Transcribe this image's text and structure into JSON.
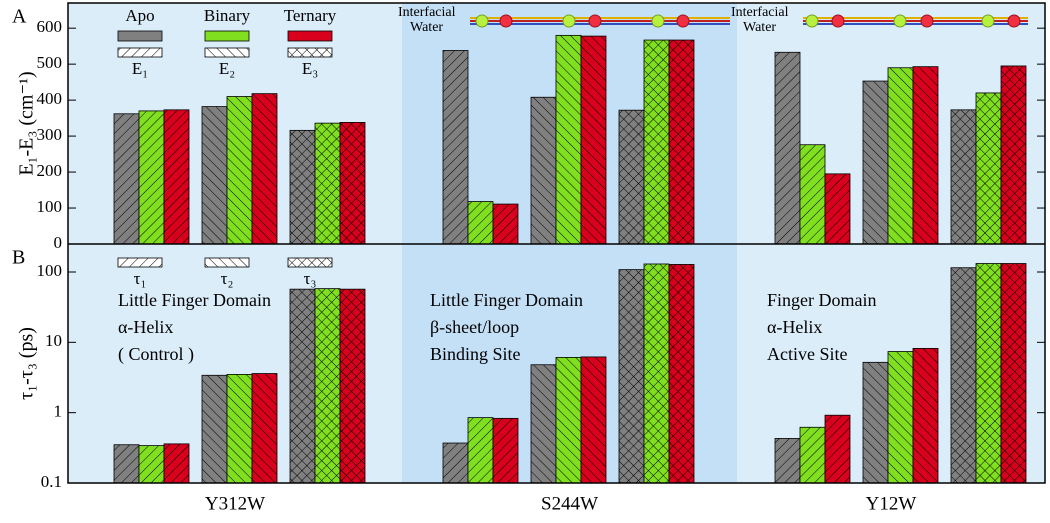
{
  "chart_data": [
    {
      "type": "bar",
      "label": "A",
      "ylabel": "E₁-E₃ (cm⁻¹)",
      "ylim": [
        0,
        670
      ],
      "yticks": [
        0,
        100,
        200,
        300,
        400,
        500,
        600
      ],
      "hatch_labels": [
        "E₁",
        "E₂",
        "E₃"
      ],
      "annotations": [
        [
          "Interfacial",
          "Water"
        ],
        [
          "Interfacial",
          "Water"
        ]
      ],
      "series": [
        {
          "name": "Apo",
          "color": "#808080",
          "values": [
            [
              362,
              382,
              316
            ],
            [
              538,
              408,
              372
            ],
            [
              533,
              453,
              373
            ]
          ]
        },
        {
          "name": "Binary",
          "color": "#80e020",
          "values": [
            [
              370,
              410,
              336
            ],
            [
              118,
              580,
              567
            ],
            [
              276,
              490,
              420
            ]
          ]
        },
        {
          "name": "Ternary",
          "color": "#d8001c",
          "values": [
            [
              373,
              418,
              338
            ],
            [
              111,
              578,
              567
            ],
            [
              195,
              493,
              495
            ]
          ]
        }
      ]
    },
    {
      "type": "bar",
      "label": "B",
      "ylabel": "τ₁-τ₃ (ps)",
      "log_scale": true,
      "ylim": [
        0.1,
        250
      ],
      "yticks": [
        0.1,
        1,
        10,
        100
      ],
      "hatch_labels": [
        "τ₁",
        "τ₂",
        "τ₃"
      ],
      "categories": [
        "Y312W",
        "S244W",
        "Y12W"
      ],
      "region_colors": [
        "#dcedfa",
        "#c4e0f6",
        "#dcedfa"
      ],
      "notes": [
        [
          "Little Finger Domain",
          "α-Helix",
          "( Control )"
        ],
        [
          "Little Finger Domain",
          "β-sheet/loop",
          "Binding Site"
        ],
        [
          "Finger Domain",
          "α-Helix",
          "Active Site"
        ]
      ],
      "series": [
        {
          "color": "#808080",
          "values": [
            [
              0.35,
              3.4,
              57
            ],
            [
              0.37,
              4.8,
              108
            ],
            [
              0.43,
              5.2,
              115
            ]
          ]
        },
        {
          "color": "#80e020",
          "values": [
            [
              0.34,
              3.5,
              58
            ],
            [
              0.85,
              6.1,
              130
            ],
            [
              0.62,
              7.4,
              132
            ]
          ]
        },
        {
          "color": "#d8001c",
          "values": [
            [
              0.36,
              3.6,
              57
            ],
            [
              0.83,
              6.2,
              128
            ],
            [
              0.92,
              8.2,
              132
            ]
          ]
        }
      ]
    }
  ]
}
